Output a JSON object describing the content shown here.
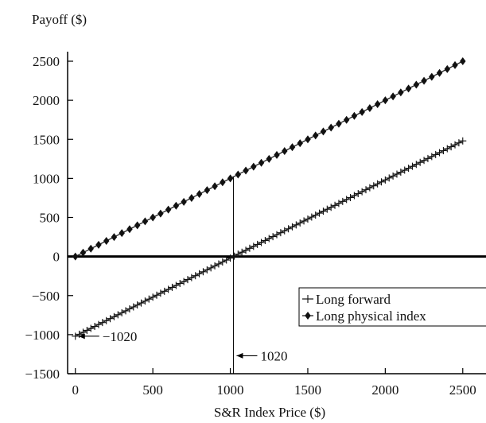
{
  "chart_data": {
    "type": "line",
    "title": "",
    "xlabel": "S&R Index Price ($)",
    "ylabel": "Payoff ($)",
    "xlim": [
      -50,
      2650
    ],
    "ylim": [
      -1500,
      2500
    ],
    "x_ticks": [
      0,
      500,
      1000,
      1500,
      2000,
      2500
    ],
    "y_ticks": [
      2500,
      2000,
      1500,
      1000,
      500,
      0,
      -500,
      -1000,
      -1500
    ],
    "x_tick_labels": [
      "0",
      "500",
      "1000",
      "1500",
      "2000",
      "2500"
    ],
    "y_tick_labels": [
      "2500",
      "2000",
      "1500",
      "1000",
      "500",
      "0",
      "−500",
      "−1000",
      "−1500"
    ],
    "grid": false,
    "legend_position": "right",
    "series": [
      {
        "name": "Long forward",
        "marker": "plus",
        "color": "#222222",
        "x_start": 0,
        "x_end": 2500,
        "x_step": 25,
        "slope": 1,
        "intercept": -1020
      },
      {
        "name": "Long physical index",
        "marker": "diamond",
        "color": "#222222",
        "x_start": 0,
        "x_end": 2500,
        "x_step": 50,
        "slope": 1,
        "intercept": 0
      }
    ],
    "annotations": [
      {
        "label": "−1020",
        "x": 0,
        "y": -1020,
        "arrow": "left"
      },
      {
        "label": "1020",
        "x": 1020,
        "y": -1270,
        "arrow": "left"
      }
    ],
    "reference_lines": [
      {
        "orientation": "vertical",
        "x": 1020,
        "y_from": -1500,
        "y_to": 1020
      }
    ]
  }
}
